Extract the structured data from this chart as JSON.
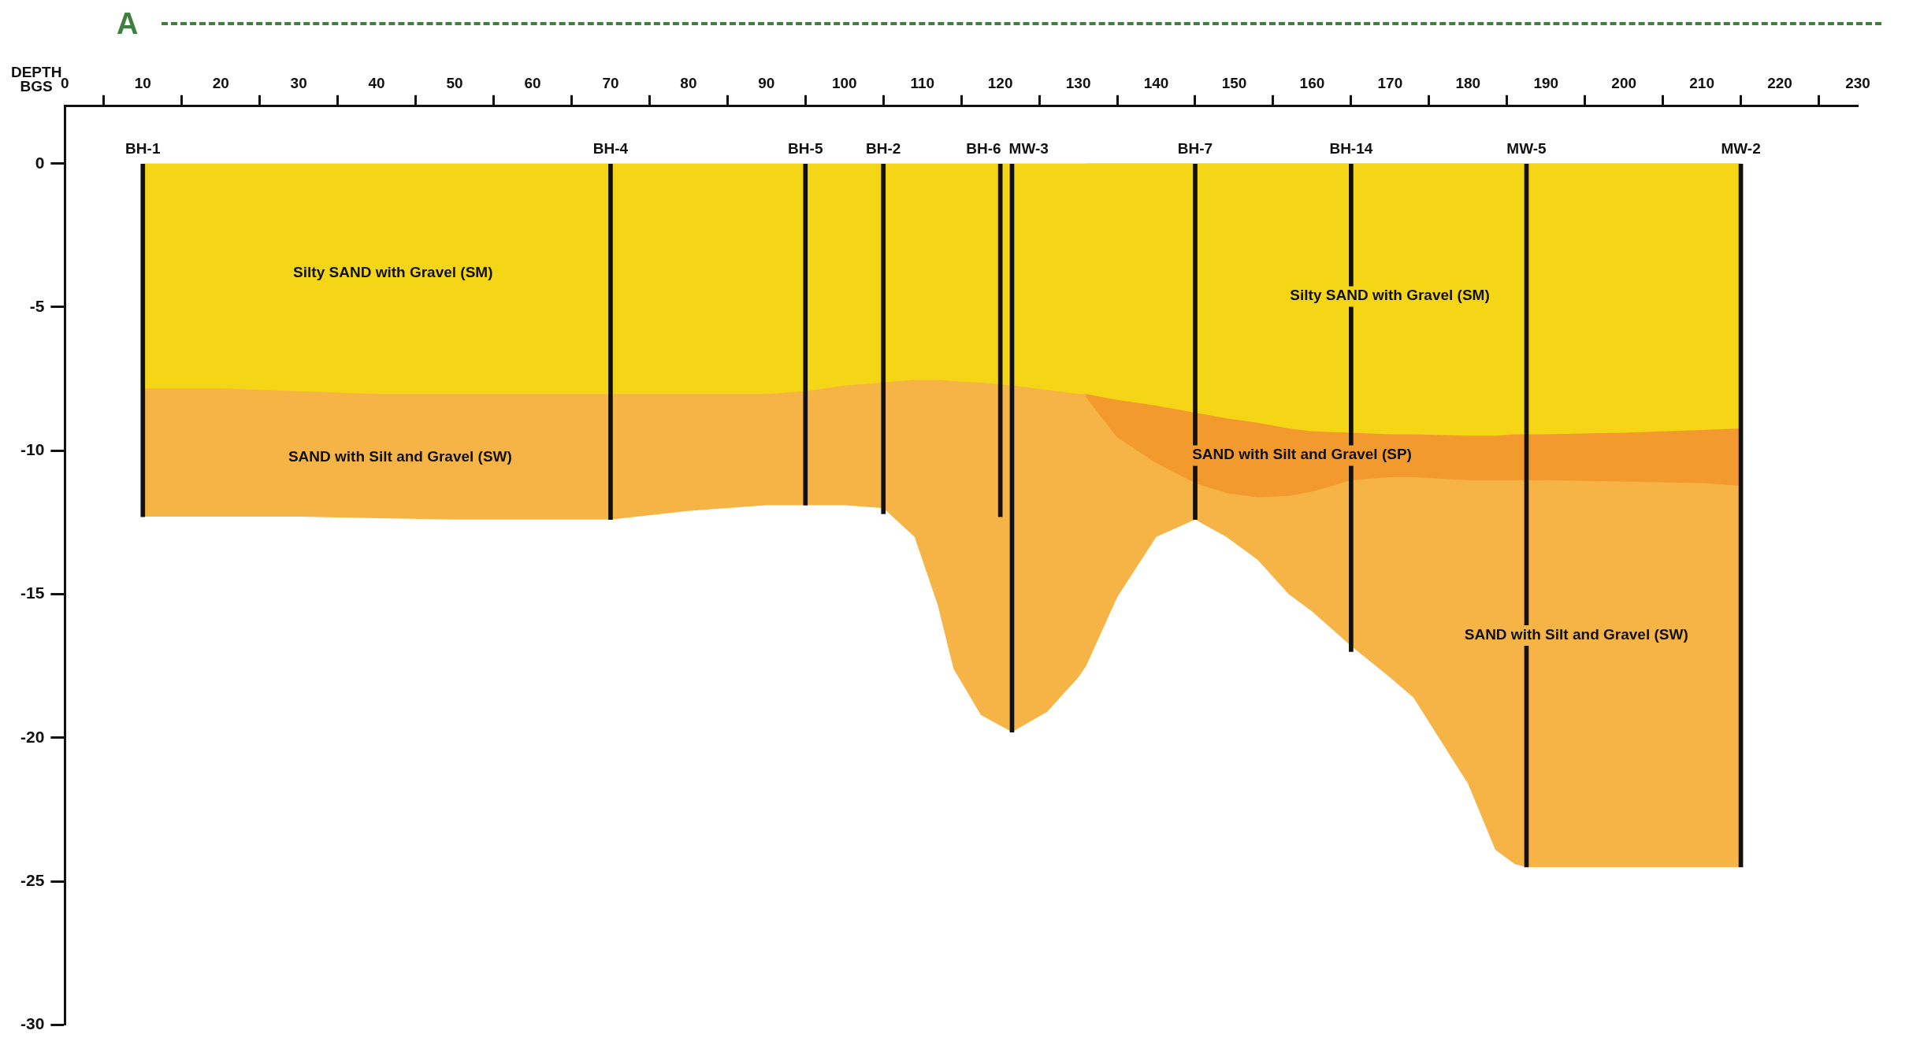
{
  "chart_data": {
    "type": "area",
    "title": "A",
    "ylabel": "DEPTH BGS",
    "legend": false,
    "grid": false,
    "x": [
      10,
      20,
      30,
      40,
      50,
      60,
      70,
      80,
      90,
      95,
      100,
      105,
      109,
      112,
      114,
      117.5,
      121.5,
      126,
      130,
      131,
      135,
      140,
      145,
      149,
      153,
      157,
      160,
      165,
      170,
      173,
      180,
      183.5,
      186,
      187.5,
      190,
      200,
      210,
      215
    ],
    "series": [
      {
        "color": "#f5d617",
        "values": [
          -7.8,
          -7.8,
          -7.9,
          -8.0,
          -8.0,
          -8.0,
          -8.0,
          -8.0,
          -8.0,
          -7.9,
          -7.7,
          -7.6,
          -7.5,
          -7.5,
          -7.55,
          -7.6,
          -7.7,
          -7.85,
          -8.0,
          -8.0,
          -8.2,
          -8.4,
          -8.65,
          -8.85,
          -9.0,
          -9.2,
          -9.3,
          -9.35,
          -9.4,
          -9.4,
          -9.45,
          -9.45,
          -9.4,
          -9.4,
          -9.4,
          -9.35,
          -9.25,
          -9.2
        ]
      },
      {
        "color": "#f39a2e",
        "values": [
          null,
          null,
          null,
          null,
          null,
          null,
          null,
          null,
          null,
          null,
          null,
          null,
          null,
          null,
          null,
          null,
          null,
          null,
          null,
          -8.1,
          -9.5,
          -10.4,
          -11.1,
          -11.45,
          -11.6,
          -11.55,
          -11.4,
          -11.0,
          -10.9,
          -10.9,
          -11.0,
          -11.0,
          -11.0,
          -11.0,
          -11.0,
          -11.05,
          -11.1,
          -11.2
        ]
      },
      {
        "color": "#f7b446",
        "values": [
          -12.3,
          -12.3,
          -12.3,
          -12.35,
          -12.4,
          -12.4,
          -12.4,
          -12.1,
          -11.9,
          -11.9,
          -11.9,
          -12.0,
          -13.0,
          -15.4,
          -17.6,
          -19.2,
          -19.8,
          -19.1,
          -17.9,
          -17.5,
          -15.1,
          -13.0,
          -12.4,
          -13.0,
          -13.8,
          -15.0,
          -15.6,
          -16.8,
          -17.9,
          -18.6,
          -21.6,
          -23.9,
          -24.4,
          -24.5,
          -24.5,
          -24.5,
          -24.5,
          -24.5
        ]
      },
      {
        "type": "bar",
        "color": "#111111",
        "x": [
          10,
          70,
          95,
          105,
          120,
          121.5,
          145,
          165,
          187.5,
          215
        ],
        "values": [
          -12.3,
          -12.4,
          -11.9,
          -12.2,
          -12.3,
          -19.8,
          -12.4,
          -17.0,
          -24.5,
          -24.5
        ]
      }
    ],
    "xlim": [
      0,
      230
    ],
    "xticks": [
      0,
      10,
      20,
      30,
      40,
      50,
      60,
      70,
      80,
      90,
      100,
      110,
      120,
      130,
      140,
      150,
      160,
      170,
      180,
      190,
      200,
      210,
      220,
      230
    ],
    "ylim": [
      -30,
      2
    ],
    "yticks": [
      0,
      -5,
      -10,
      -15,
      -20,
      -25,
      -30
    ],
    "annotations": [
      {
        "text": "BH-1",
        "x": 10,
        "y": 0
      },
      {
        "text": "BH-4",
        "x": 70,
        "y": 0
      },
      {
        "text": "BH-5",
        "x": 95,
        "y": 0
      },
      {
        "text": "BH-2",
        "x": 105,
        "y": 0
      },
      {
        "text": "BH-6",
        "x": 120,
        "y": 0
      },
      {
        "text": "MW-3",
        "x": 121.5,
        "y": 0
      },
      {
        "text": "BH-7",
        "x": 145,
        "y": 0
      },
      {
        "text": "BH-14",
        "x": 165,
        "y": 0
      },
      {
        "text": "MW-5",
        "x": 187.5,
        "y": 0
      },
      {
        "text": "MW-2",
        "x": 215,
        "y": 0
      },
      "Silty SAND with Gravel (SM)",
      "Silty SAND with Gravel (SM)",
      "SAND with Silt and Gravel (SW)",
      "SAND with Silt and Gravel (SP)",
      "SAND with Silt and Gravel (SW)"
    ]
  }
}
